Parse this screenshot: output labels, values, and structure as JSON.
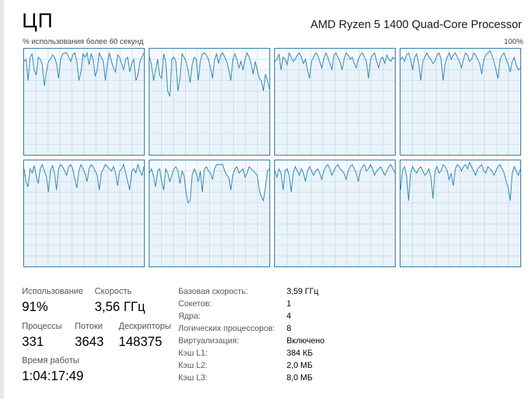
{
  "header": {
    "title": "ЦП",
    "cpu_name": "AMD Ryzen 5 1400 Quad-Core Processor",
    "graph_caption": "% использования более 60 секунд",
    "graph_max_label": "100%"
  },
  "graph": {
    "line_color": "#2e86b8",
    "grid_color": "#c9dfee",
    "border_color": "#1c6e9c",
    "cores": [
      {
        "usage": [
          88,
          90,
          70,
          92,
          95,
          80,
          75,
          92,
          90,
          85,
          65,
          78,
          88,
          90,
          94,
          92,
          86,
          72,
          90,
          95,
          96,
          96,
          92,
          88,
          94,
          96,
          88,
          70,
          78,
          95,
          92,
          96,
          85,
          95,
          90,
          74,
          80,
          96,
          92,
          88,
          70,
          86,
          96,
          88,
          82,
          78,
          94,
          92,
          86,
          80,
          90,
          92,
          78,
          86,
          90,
          70,
          75,
          88,
          92,
          96
        ]
      },
      {
        "usage": [
          92,
          85,
          70,
          80,
          90,
          75,
          72,
          95,
          88,
          60,
          55,
          90,
          92,
          88,
          60,
          72,
          95,
          92,
          88,
          80,
          68,
          85,
          92,
          90,
          70,
          88,
          95,
          96,
          94,
          90,
          82,
          72,
          90,
          95,
          86,
          94,
          96,
          92,
          88,
          80,
          70,
          90,
          95,
          90,
          82,
          88,
          80,
          90,
          96,
          92,
          86,
          76,
          88,
          80,
          72,
          70,
          60,
          76,
          70,
          62
        ]
      },
      {
        "usage": [
          88,
          90,
          95,
          80,
          92,
          90,
          85,
          96,
          92,
          88,
          90,
          94,
          96,
          92,
          86,
          90,
          80,
          72,
          88,
          92,
          96,
          94,
          88,
          82,
          90,
          96,
          92,
          86,
          80,
          94,
          96,
          92,
          88,
          80,
          90,
          96,
          94,
          90,
          92,
          86,
          82,
          90,
          94,
          96,
          92,
          88,
          72,
          90,
          94,
          96,
          88,
          82,
          90,
          92,
          86,
          94,
          90,
          88,
          92,
          90
        ]
      },
      {
        "usage": [
          90,
          92,
          88,
          94,
          96,
          90,
          80,
          92,
          95,
          86,
          70,
          88,
          92,
          96,
          92,
          90,
          86,
          88,
          94,
          96,
          90,
          70,
          86,
          92,
          96,
          90,
          94,
          96,
          92,
          88,
          82,
          90,
          96,
          94,
          88,
          90,
          96,
          94,
          90,
          86,
          76,
          90,
          94,
          96,
          98,
          94,
          88,
          80,
          72,
          90,
          94,
          96,
          90,
          86,
          78,
          88,
          92,
          84,
          80,
          82
        ]
      },
      {
        "usage": [
          92,
          80,
          75,
          92,
          88,
          95,
          86,
          78,
          92,
          96,
          90,
          85,
          70,
          90,
          95,
          88,
          72,
          92,
          96,
          94,
          90,
          86,
          94,
          96,
          92,
          82,
          74,
          90,
          96,
          92,
          88,
          80,
          92,
          96,
          94,
          90,
          86,
          72,
          88,
          92,
          96,
          94,
          92,
          90,
          94,
          88,
          76,
          90,
          92,
          96,
          88,
          80,
          72,
          90,
          92,
          88,
          96,
          90,
          86,
          94
        ]
      },
      {
        "usage": [
          88,
          92,
          85,
          75,
          90,
          92,
          80,
          72,
          92,
          88,
          80,
          86,
          92,
          94,
          90,
          78,
          90,
          86,
          70,
          60,
          62,
          86,
          92,
          88,
          80,
          90,
          70,
          92,
          94,
          90,
          88,
          82,
          92,
          96,
          96,
          96,
          96,
          90,
          86,
          84,
          72,
          86,
          92,
          94,
          88,
          90,
          92,
          84,
          88,
          94,
          92,
          90,
          88,
          86,
          72,
          66,
          62,
          74,
          90,
          92
        ]
      },
      {
        "usage": [
          90,
          84,
          92,
          88,
          72,
          90,
          92,
          86,
          70,
          88,
          94,
          90,
          86,
          92,
          88,
          80,
          90,
          94,
          90,
          86,
          90,
          92,
          88,
          82,
          90,
          94,
          96,
          92,
          86,
          90,
          94,
          96,
          92,
          90,
          88,
          82,
          90,
          94,
          96,
          92,
          88,
          80,
          90,
          94,
          96,
          90,
          92,
          96,
          92,
          86,
          90,
          92,
          94,
          90,
          86,
          90,
          94,
          96,
          92,
          88
        ]
      },
      {
        "usage": [
          72,
          90,
          94,
          86,
          62,
          88,
          94,
          90,
          88,
          92,
          94,
          90,
          86,
          88,
          92,
          84,
          64,
          90,
          94,
          88,
          90,
          96,
          94,
          90,
          82,
          88,
          76,
          92,
          96,
          94,
          90,
          94,
          96,
          92,
          98,
          94,
          90,
          86,
          92,
          94,
          96,
          90,
          88,
          94,
          92,
          90,
          86,
          90,
          94,
          96,
          92,
          88,
          80,
          74,
          62,
          88,
          94,
          90,
          86,
          92
        ]
      }
    ]
  },
  "stats": {
    "usage_label": "Использование",
    "usage_value": "91%",
    "speed_label": "Скорость",
    "speed_value": "3,56 ГГц",
    "processes_label": "Процессы",
    "processes_value": "331",
    "threads_label": "Потоки",
    "threads_value": "3643",
    "handles_label": "Дескрипторы",
    "handles_value": "148375",
    "uptime_label": "Время работы",
    "uptime_value": "1:04:17:49"
  },
  "details": [
    {
      "label": "Базовая скорость:",
      "value": "3,59 ГГц"
    },
    {
      "label": "Сокетов:",
      "value": "1"
    },
    {
      "label": "Ядра:",
      "value": "4"
    },
    {
      "label": "Логических процессоров:",
      "value": "8"
    },
    {
      "label": "Виртуализация:",
      "value": "Включено"
    },
    {
      "label": "Кэш L1:",
      "value": "384 КБ"
    },
    {
      "label": "Кэш L2:",
      "value": "2,0 МБ"
    },
    {
      "label": "Кэш L3:",
      "value": "8,0 МБ"
    }
  ]
}
